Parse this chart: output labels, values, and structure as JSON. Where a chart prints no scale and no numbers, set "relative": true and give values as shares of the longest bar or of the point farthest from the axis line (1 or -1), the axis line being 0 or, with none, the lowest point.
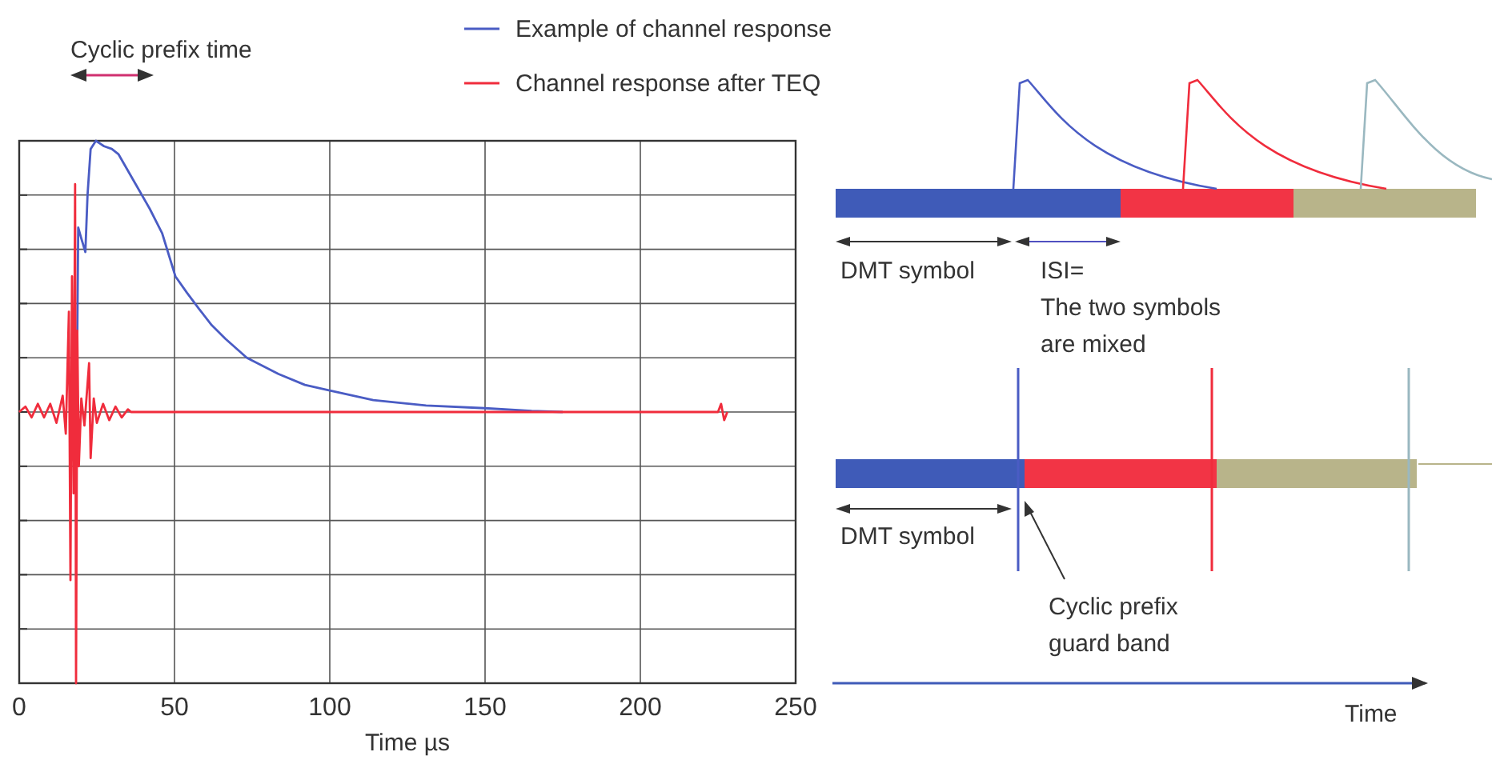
{
  "chart_data": {
    "type": "line",
    "relative": true,
    "xlabel": "Time µs",
    "xlim": [
      0,
      250
    ],
    "xticks": [
      0,
      50,
      100,
      150,
      200,
      250
    ],
    "grid": true,
    "legend": "top",
    "line_style": "solid",
    "marker": "none",
    "series": [
      {
        "name": "Example of channel response",
        "color": "#4a5cc4",
        "x": [
          18.5,
          19,
          20,
          21.3,
          22,
          23,
          24.7,
          26,
          27.3,
          29.8,
          32,
          37.5,
          42,
          46,
          50.3,
          54,
          57.9,
          62,
          66.4,
          73.3,
          83.5,
          92,
          99.7,
          114,
          131,
          150,
          165,
          175
        ],
        "values": [
          0,
          0.68,
          0.64,
          0.59,
          0.8,
          0.97,
          1,
          0.99,
          0.98,
          0.97,
          0.95,
          0.84,
          0.75,
          0.66,
          0.5,
          0.44,
          0.38,
          0.32,
          0.27,
          0.2,
          0.14,
          0.1,
          0.08,
          0.044,
          0.024,
          0.014,
          0.004,
          0
        ]
      },
      {
        "name": "Channel response after TEQ",
        "color": "#f02c3c",
        "x": [
          0,
          2,
          4,
          6,
          8,
          10,
          12,
          14,
          15,
          16,
          16.5,
          17,
          17.5,
          18,
          18.3,
          18.7,
          19.2,
          20,
          21,
          22.5,
          23,
          24,
          25,
          27,
          29,
          31,
          33,
          35,
          36,
          225,
          226,
          227,
          228
        ],
        "values": [
          0,
          0.02,
          -0.02,
          0.03,
          -0.02,
          0.03,
          -0.04,
          0.06,
          -0.08,
          0.37,
          -0.62,
          0.5,
          -0.3,
          0.84,
          -1,
          0.3,
          -0.2,
          0.05,
          -0.05,
          0.18,
          -0.17,
          0.05,
          -0.04,
          0.03,
          -0.03,
          0.02,
          -0.02,
          0.01,
          0,
          0,
          0.03,
          -0.03,
          0
        ]
      }
    ],
    "annotations": [
      "Cyclic prefix time",
      "DMT symbol",
      "ISI=\nThe two symbols\nare mixed",
      "DMT symbol",
      "Cyclic prefix\nguard band",
      "Time"
    ]
  }
}
